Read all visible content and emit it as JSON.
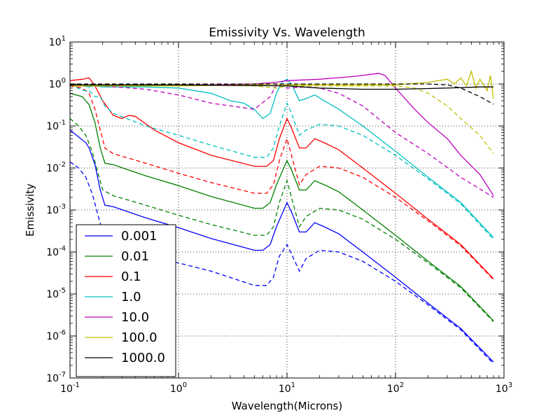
{
  "chart_data": {
    "type": "line",
    "title": "Emissivity Vs. Wavelength",
    "xlabel": "Wavelength(Microns)",
    "ylabel": "Emissivity",
    "xscale": "log",
    "yscale": "log",
    "xlim": [
      0.1,
      1000
    ],
    "ylim": [
      1e-07,
      10
    ],
    "grid": true,
    "legend_position": "lower-left",
    "x_ticks": [
      {
        "base": "10",
        "exp": "-1"
      },
      {
        "base": "10",
        "exp": "0"
      },
      {
        "base": "10",
        "exp": "1"
      },
      {
        "base": "10",
        "exp": "2"
      },
      {
        "base": "10",
        "exp": "3"
      }
    ],
    "y_ticks": [
      {
        "base": "10",
        "exp": "-7"
      },
      {
        "base": "10",
        "exp": "-6"
      },
      {
        "base": "10",
        "exp": "-5"
      },
      {
        "base": "10",
        "exp": "-4"
      },
      {
        "base": "10",
        "exp": "-3"
      },
      {
        "base": "10",
        "exp": "-2"
      },
      {
        "base": "10",
        "exp": "-1"
      },
      {
        "base": "10",
        "exp": "0"
      },
      {
        "base": "10",
        "exp": "1"
      }
    ],
    "series": [
      {
        "name": "0.001",
        "color": "#0000ff",
        "solid": [
          [
            0.1,
            0.08
          ],
          [
            0.12,
            0.055
          ],
          [
            0.14,
            0.04
          ],
          [
            0.15,
            0.03
          ],
          [
            0.17,
            0.012
          ],
          [
            0.19,
            0.003
          ],
          [
            0.21,
            0.0013
          ],
          [
            0.25,
            0.0012
          ],
          [
            0.5,
            0.00065
          ],
          [
            1,
            0.00038
          ],
          [
            2,
            0.00021
          ],
          [
            5,
            0.00011
          ],
          [
            6,
            0.00011
          ],
          [
            7,
            0.00015
          ],
          [
            8,
            0.0004
          ],
          [
            10,
            0.0015
          ],
          [
            11,
            0.0009
          ],
          [
            13,
            0.0003
          ],
          [
            15,
            0.0003
          ],
          [
            18,
            0.0005
          ],
          [
            22,
            0.0004
          ],
          [
            30,
            0.00027
          ],
          [
            50,
            0.0001
          ],
          [
            100,
            2.5e-05
          ],
          [
            200,
            6e-06
          ],
          [
            400,
            1.5e-06
          ],
          [
            800,
            2.4e-07
          ]
        ],
        "dashed": [
          [
            0.1,
            0.014
          ],
          [
            0.12,
            0.01
          ],
          [
            0.14,
            0.006
          ],
          [
            0.16,
            0.0025
          ],
          [
            0.18,
            0.0008
          ],
          [
            0.2,
            0.0003
          ],
          [
            0.25,
            0.00015
          ],
          [
            0.4,
            8e-05
          ],
          [
            1,
            5.5e-05
          ],
          [
            2,
            3.5e-05
          ],
          [
            5,
            1.6e-05
          ],
          [
            6.5,
            1.6e-05
          ],
          [
            7.5,
            2.5e-05
          ],
          [
            8.5,
            8e-05
          ],
          [
            10,
            0.00015
          ],
          [
            11,
            9e-05
          ],
          [
            13,
            3.5e-05
          ],
          [
            15,
            7e-05
          ],
          [
            20,
            0.00011
          ],
          [
            30,
            0.0001
          ],
          [
            50,
            6e-05
          ],
          [
            100,
            2e-05
          ],
          [
            200,
            5.5e-06
          ],
          [
            400,
            1.4e-06
          ],
          [
            800,
            2.2e-07
          ]
        ]
      },
      {
        "name": "0.01",
        "color": "#008000",
        "solid": [
          [
            0.1,
            0.6
          ],
          [
            0.13,
            0.5
          ],
          [
            0.15,
            0.32
          ],
          [
            0.17,
            0.12
          ],
          [
            0.19,
            0.03
          ],
          [
            0.21,
            0.013
          ],
          [
            0.25,
            0.012
          ],
          [
            0.5,
            0.0065
          ],
          [
            1,
            0.0038
          ],
          [
            2,
            0.0021
          ],
          [
            5,
            0.0011
          ],
          [
            6,
            0.0011
          ],
          [
            7,
            0.0015
          ],
          [
            8,
            0.004
          ],
          [
            10,
            0.015
          ],
          [
            11,
            0.009
          ],
          [
            13,
            0.003
          ],
          [
            15,
            0.003
          ],
          [
            18,
            0.005
          ],
          [
            22,
            0.004
          ],
          [
            30,
            0.0027
          ],
          [
            50,
            0.001
          ],
          [
            100,
            0.00025
          ],
          [
            200,
            6e-05
          ],
          [
            400,
            1.5e-05
          ],
          [
            800,
            2.3e-06
          ]
        ],
        "dashed": [
          [
            0.1,
            0.15
          ],
          [
            0.12,
            0.1
          ],
          [
            0.14,
            0.06
          ],
          [
            0.16,
            0.025
          ],
          [
            0.18,
            0.008
          ],
          [
            0.2,
            0.003
          ],
          [
            0.25,
            0.0022
          ],
          [
            0.5,
            0.0013
          ],
          [
            1,
            0.00075
          ],
          [
            2,
            0.00045
          ],
          [
            5,
            0.00025
          ],
          [
            6.5,
            0.00025
          ],
          [
            7.5,
            0.0004
          ],
          [
            8.5,
            0.0015
          ],
          [
            10,
            0.005
          ],
          [
            11,
            0.002
          ],
          [
            13,
            0.0004
          ],
          [
            15,
            0.0007
          ],
          [
            20,
            0.0011
          ],
          [
            30,
            0.001
          ],
          [
            50,
            0.0006
          ],
          [
            100,
            0.0002
          ],
          [
            200,
            5.5e-05
          ],
          [
            400,
            1.4e-05
          ],
          [
            800,
            2.2e-06
          ]
        ]
      },
      {
        "name": "0.1",
        "color": "#ff0000",
        "solid": [
          [
            0.1,
            1.2
          ],
          [
            0.13,
            1.3
          ],
          [
            0.15,
            1.4
          ],
          [
            0.17,
            0.9
          ],
          [
            0.2,
            0.4
          ],
          [
            0.25,
            0.18
          ],
          [
            0.3,
            0.15
          ],
          [
            0.35,
            0.18
          ],
          [
            0.4,
            0.17
          ],
          [
            0.6,
            0.08
          ],
          [
            1,
            0.04
          ],
          [
            2,
            0.02
          ],
          [
            5,
            0.011
          ],
          [
            6.5,
            0.011
          ],
          [
            7.5,
            0.015
          ],
          [
            8.5,
            0.05
          ],
          [
            10,
            0.15
          ],
          [
            11,
            0.09
          ],
          [
            13,
            0.03
          ],
          [
            15,
            0.03
          ],
          [
            18,
            0.05
          ],
          [
            22,
            0.04
          ],
          [
            30,
            0.027
          ],
          [
            50,
            0.01
          ],
          [
            100,
            0.0025
          ],
          [
            200,
            0.0006
          ],
          [
            400,
            0.00015
          ],
          [
            800,
            2.3e-05
          ]
        ],
        "dashed": [
          [
            0.1,
            0.9
          ],
          [
            0.13,
            0.8
          ],
          [
            0.15,
            0.6
          ],
          [
            0.17,
            0.25
          ],
          [
            0.19,
            0.08
          ],
          [
            0.21,
            0.03
          ],
          [
            0.25,
            0.022
          ],
          [
            0.5,
            0.013
          ],
          [
            1,
            0.0075
          ],
          [
            2,
            0.0045
          ],
          [
            5,
            0.0025
          ],
          [
            6.5,
            0.0025
          ],
          [
            7.5,
            0.004
          ],
          [
            8.5,
            0.015
          ],
          [
            10,
            0.05
          ],
          [
            11,
            0.02
          ],
          [
            13,
            0.004
          ],
          [
            15,
            0.007
          ],
          [
            20,
            0.011
          ],
          [
            30,
            0.01
          ],
          [
            50,
            0.006
          ],
          [
            100,
            0.002
          ],
          [
            200,
            0.00055
          ],
          [
            400,
            0.00014
          ],
          [
            800,
            2.2e-05
          ]
        ]
      },
      {
        "name": "1.0",
        "color": "#00bfbf",
        "solid": [
          [
            0.1,
            0.9
          ],
          [
            0.13,
            0.9
          ],
          [
            0.15,
            0.85
          ],
          [
            0.17,
            0.9
          ],
          [
            0.2,
            0.85
          ],
          [
            0.5,
            0.85
          ],
          [
            1,
            0.8
          ],
          [
            2,
            0.6
          ],
          [
            3,
            0.4
          ],
          [
            4,
            0.35
          ],
          [
            5,
            0.25
          ],
          [
            6,
            0.15
          ],
          [
            7,
            0.2
          ],
          [
            8,
            0.6
          ],
          [
            9,
            1.1
          ],
          [
            10,
            1.3
          ],
          [
            11,
            1.0
          ],
          [
            13,
            0.4
          ],
          [
            15,
            0.45
          ],
          [
            18,
            0.55
          ],
          [
            22,
            0.4
          ],
          [
            30,
            0.25
          ],
          [
            50,
            0.1
          ],
          [
            100,
            0.025
          ],
          [
            200,
            0.006
          ],
          [
            400,
            0.0015
          ],
          [
            800,
            0.00022
          ]
        ],
        "dashed": [
          [
            0.1,
            1.0
          ],
          [
            0.13,
            0.7
          ],
          [
            0.15,
            0.7
          ],
          [
            0.17,
            0.5
          ],
          [
            0.19,
            0.5
          ],
          [
            0.21,
            0.3
          ],
          [
            0.25,
            0.2
          ],
          [
            0.5,
            0.1
          ],
          [
            1,
            0.06
          ],
          [
            2,
            0.035
          ],
          [
            5,
            0.018
          ],
          [
            6.5,
            0.018
          ],
          [
            7.5,
            0.03
          ],
          [
            8.5,
            0.1
          ],
          [
            10,
            0.35
          ],
          [
            11,
            0.2
          ],
          [
            13,
            0.06
          ],
          [
            15,
            0.08
          ],
          [
            20,
            0.11
          ],
          [
            30,
            0.1
          ],
          [
            50,
            0.06
          ],
          [
            100,
            0.02
          ],
          [
            200,
            0.0055
          ],
          [
            400,
            0.0014
          ],
          [
            800,
            0.0002
          ]
        ]
      },
      {
        "name": "10.0",
        "color": "#bf00bf",
        "solid": [
          [
            0.1,
            0.9
          ],
          [
            0.2,
            0.9
          ],
          [
            0.5,
            0.95
          ],
          [
            1,
            0.95
          ],
          [
            2,
            0.95
          ],
          [
            5,
            1.0
          ],
          [
            8,
            1.1
          ],
          [
            10,
            1.2
          ],
          [
            20,
            1.3
          ],
          [
            40,
            1.5
          ],
          [
            60,
            1.7
          ],
          [
            70,
            1.8
          ],
          [
            80,
            1.6
          ],
          [
            100,
            0.8
          ],
          [
            150,
            0.25
          ],
          [
            200,
            0.12
          ],
          [
            300,
            0.05
          ],
          [
            400,
            0.02
          ],
          [
            600,
            0.007
          ],
          [
            800,
            0.0022
          ]
        ],
        "dashed": [
          [
            0.1,
            1.0
          ],
          [
            0.2,
            0.9
          ],
          [
            0.5,
            0.75
          ],
          [
            1,
            0.55
          ],
          [
            2,
            0.35
          ],
          [
            5,
            0.25
          ],
          [
            7,
            0.5
          ],
          [
            8,
            1.0
          ],
          [
            10,
            0.8
          ],
          [
            15,
            0.85
          ],
          [
            20,
            0.8
          ],
          [
            30,
            0.6
          ],
          [
            50,
            0.3
          ],
          [
            100,
            0.07
          ],
          [
            200,
            0.022
          ],
          [
            400,
            0.006
          ],
          [
            800,
            0.002
          ]
        ]
      },
      {
        "name": "100.0",
        "color": "#bfbf00",
        "solid": [
          [
            0.1,
            0.9
          ],
          [
            0.5,
            0.9
          ],
          [
            1,
            0.9
          ],
          [
            5,
            0.95
          ],
          [
            8,
            1.0
          ],
          [
            10,
            0.95
          ],
          [
            20,
            0.95
          ],
          [
            50,
            0.95
          ],
          [
            100,
            0.95
          ],
          [
            200,
            1.1
          ],
          [
            300,
            1.3
          ],
          [
            350,
            1.0
          ],
          [
            400,
            1.4
          ],
          [
            450,
            0.9
          ],
          [
            500,
            2.0
          ],
          [
            550,
            0.8
          ],
          [
            600,
            1.3
          ],
          [
            700,
            0.7
          ],
          [
            750,
            1.6
          ],
          [
            800,
            0.45
          ]
        ],
        "dashed": [
          [
            0.1,
            0.95
          ],
          [
            1,
            0.95
          ],
          [
            5,
            0.9
          ],
          [
            8,
            0.8
          ],
          [
            10,
            0.9
          ],
          [
            20,
            0.9
          ],
          [
            50,
            0.9
          ],
          [
            100,
            0.9
          ],
          [
            150,
            0.8
          ],
          [
            200,
            0.6
          ],
          [
            300,
            0.3
          ],
          [
            400,
            0.15
          ],
          [
            600,
            0.06
          ],
          [
            800,
            0.022
          ]
        ]
      },
      {
        "name": "1000.0",
        "color": "#000000",
        "solid": [
          [
            0.1,
            0.95
          ],
          [
            1,
            0.95
          ],
          [
            5,
            0.92
          ],
          [
            10,
            0.9
          ],
          [
            20,
            0.8
          ],
          [
            50,
            0.75
          ],
          [
            100,
            0.75
          ],
          [
            200,
            0.78
          ],
          [
            400,
            0.82
          ],
          [
            600,
            0.85
          ],
          [
            800,
            0.85
          ]
        ],
        "dashed": [
          [
            0.1,
            1.0
          ],
          [
            1,
            1.0
          ],
          [
            10,
            1.0
          ],
          [
            50,
            1.0
          ],
          [
            100,
            1.0
          ],
          [
            200,
            1.0
          ],
          [
            300,
            0.95
          ],
          [
            400,
            0.8
          ],
          [
            600,
            0.5
          ],
          [
            800,
            0.33
          ]
        ]
      }
    ]
  }
}
